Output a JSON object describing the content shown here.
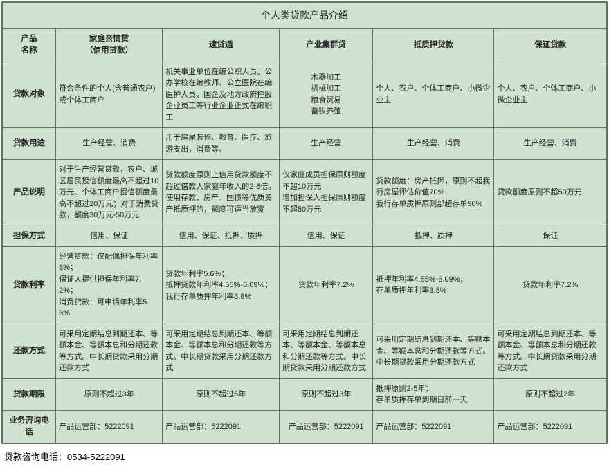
{
  "title": "个人类贷款产品介绍",
  "colors": {
    "cell_bg": "#cfe2cf",
    "border": "#5a7a5a",
    "text": "#222222"
  },
  "columns": [
    {
      "label": "产品\n名称"
    },
    {
      "label": "家庭亲情贷\n（信用贷款）"
    },
    {
      "label": "速贷通"
    },
    {
      "label": "产业集群贷"
    },
    {
      "label": "抵质押贷款"
    },
    {
      "label": "保证贷款"
    }
  ],
  "rows": [
    {
      "label": "贷款对象",
      "cells": [
        "符合条件的个人(含普通农户)\n或个体工商户",
        "机关事业单位在编公职人员、公办学校在编教师、公立医院在编医护人员、国企及地方政府控股企业员工等行业企业正式在编职工",
        "木器加工\n机械加工\n粮食贸易\n畜牧养殖",
        "个人、农户、个体工商户、小微企业主",
        "个人、农户、个体工商户、小微企业主"
      ],
      "align": [
        "left",
        "left",
        "center",
        "left",
        "left"
      ]
    },
    {
      "label": "贷款用途",
      "cells": [
        "生产经营、消费",
        "用于房屋装修、教育、医疗、旅游支出，消费等。",
        "生产经营",
        "生产经营、消费",
        "生产经营、消费"
      ],
      "align": [
        "center",
        "left",
        "center",
        "center",
        "center"
      ]
    },
    {
      "label": "产品说明",
      "cells": [
        "对于生产经营贷款，农户、城区居民授信额度最高不超过10万元、个体工商户授信额度最高不超过20万元；对于消费贷款，额度30万元-50万元",
        "贷款额度原则上信用贷款额度不超过借款人家庭年收入的2-6倍。使用存款、房产、国债等优质资产抵质押的，额度可适当放宽",
        "仅家庭成员担保原则额度不超10万元\n增加担保人担保原则额度不超50万元",
        "贷款额度：房产抵押，原则不超我行房屋评估价值70%\n我行存单质押原则部超存单90%",
        "贷款额度原则不超50万元"
      ],
      "align": [
        "left",
        "left",
        "left",
        "left",
        "left"
      ]
    },
    {
      "label": "担保方式",
      "cells": [
        "信用、保证",
        "信用、保证、抵押、质押",
        "信用、保证",
        "抵押、质押",
        "保证"
      ],
      "align": [
        "center",
        "center",
        "center",
        "center",
        "center"
      ]
    },
    {
      "label": "贷款利率",
      "cells": [
        "经营贷款：仅配偶担保年利率8%；\n保证人提供担保年利率7.2%；\n消费贷款：可申请年利率5.6%",
        "贷款年利率5.6%；\n抵押贷款年利率4.55%-6.09%；\n我行存单质押年利率3.8%",
        "贷款年利率7.2%",
        "抵押年利率4.55%-6.09%；\n存单质押年利率3.8%",
        "贷款年利率7.2%"
      ],
      "align": [
        "left",
        "left",
        "center",
        "left",
        "center"
      ]
    },
    {
      "label": "还款方式",
      "cells": [
        "可采用定期结息到期还本、等额本金、等额本息和分期还款等方式。中长期贷款采用分期还款方式",
        "可采用定期结息到期还本、等额本金、等额本息和分期还款等方式。中长期贷款采用分期还款方式",
        "可采用定期结息到期还本、等额本金、等额本息和分期还款等方式。中长期贷款采用分期还款方式",
        "可采用定期结息到期还本、等额本金、等额本息和分期还款等方式。中长期贷款采用分期还款方式",
        "可采用定期结息到期还本、等额本金、等额本息和分期还款等方式。中长期贷款采用分期还款方式"
      ],
      "align": [
        "left",
        "left",
        "left",
        "left",
        "left"
      ]
    },
    {
      "label": "贷款期限",
      "cells": [
        "原则不超过3年",
        "原则不超过5年",
        "原则不超过3年",
        "抵押原则2-5年；\n存单质押存单到期日前一天",
        "原则不超过2年"
      ],
      "align": [
        "center",
        "center",
        "center",
        "left",
        "center"
      ]
    },
    {
      "label": "业务咨询电话",
      "cells": [
        "产品运营部：5222091",
        "产品运营部：5222091",
        "产品运营部：5222091",
        "产品运营部：5222091",
        "产品运营部：5222091"
      ],
      "align": [
        "left",
        "left",
        "center",
        "left",
        "left"
      ]
    }
  ],
  "footer": "贷款咨询电话：0534-5222091"
}
